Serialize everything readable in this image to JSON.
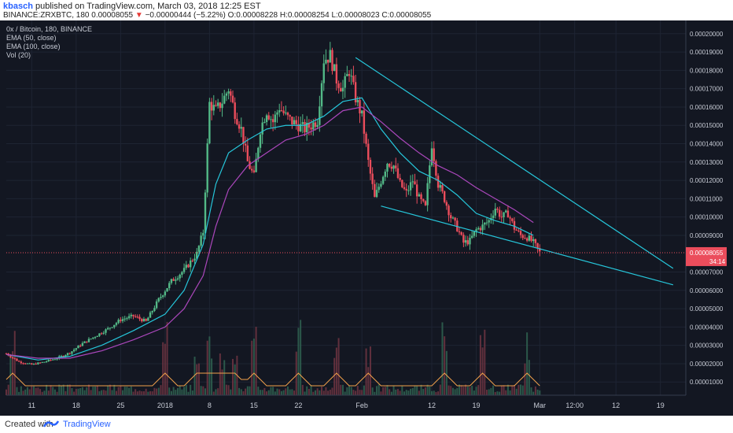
{
  "header": {
    "author": "kbasch",
    "published": "published on TradingView.com, March 03, 2018 12:25 EST",
    "symbol_line": "BINANCE:ZRXBTC, 180",
    "last": "0.00008055",
    "change": "−0.00000444 (−5.22%)",
    "ohlc": "O:0.00008228 H:0.00008254 L:0.00008023 C:0.00008055"
  },
  "legend": [
    "0x / Bitcoin, 180, BINANCE",
    "EMA (50, close)",
    "EMA (100, close)",
    "Vol (20)"
  ],
  "price_tag": {
    "value": "0.00008055",
    "countdown": "34:14"
  },
  "footer": {
    "created": "Created with",
    "brand": "TradingView"
  },
  "colors": {
    "background": "#131722",
    "up": "#53b987",
    "down": "#eb4d5c",
    "ema50": "#26c6da",
    "ema100": "#ab47bc",
    "channel": "#26c6da",
    "volume_ma": "#f0a04b",
    "price_line": "#eb4d5c"
  },
  "chart_data": {
    "type": "line",
    "title": "0x / Bitcoin, 180, BINANCE",
    "y_ticks": [
      "0.00020000",
      "0.00019000",
      "0.00018000",
      "0.00017000",
      "0.00016000",
      "0.00015000",
      "0.00014000",
      "0.00013000",
      "0.00012000",
      "0.00011000",
      "0.00010000",
      "0.00009000",
      "0.00007000",
      "0.00006000",
      "0.00005000",
      "0.00004000",
      "0.00003000",
      "0.00002000",
      "0.00001000"
    ],
    "x_ticks": [
      "11",
      "18",
      "25",
      "2018",
      "8",
      "15",
      "22",
      "Feb",
      "12",
      "19",
      "Mar",
      "12:00",
      "12",
      "19"
    ],
    "x_tick_days": [
      -21,
      -14,
      -7,
      0,
      7,
      14,
      21,
      31,
      42,
      49,
      59,
      64.5,
      71,
      78
    ],
    "x_range_days": [
      -25,
      82
    ],
    "ylim": [
      0,
      0.0002
    ],
    "y_axis_price_scale_top": 0.0002055,
    "y_axis_price_scale_bottom": 2.8e-06,
    "series": [
      {
        "name": "0x / Bitcoin",
        "days": [
          -25,
          -23,
          -21,
          -19,
          -17,
          -15,
          -13,
          -11,
          -9,
          -7,
          -5,
          -3,
          -1,
          1,
          3,
          5,
          6,
          7,
          8,
          9,
          10,
          11,
          12,
          13,
          14,
          15,
          16,
          17,
          18,
          19,
          20,
          21,
          22,
          23,
          24,
          25,
          26,
          27,
          28,
          29,
          30,
          31,
          32,
          33,
          34,
          35,
          36,
          37,
          38,
          39,
          40,
          41,
          42,
          43,
          44,
          45,
          46,
          47,
          48,
          49,
          50,
          51,
          52,
          53,
          54,
          55,
          56,
          57,
          58,
          59
        ],
        "values": [
          2.55e-05,
          2.1e-05,
          1.95e-05,
          2.1e-05,
          2.3e-05,
          2.6e-05,
          3.1e-05,
          3.5e-05,
          3.9e-05,
          4.4e-05,
          4.6e-05,
          4.3e-05,
          5.5e-05,
          6.5e-05,
          7.1e-05,
          8e-05,
          9.2e-05,
          0.000162,
          0.000158,
          0.000163,
          0.00017,
          0.000157,
          0.000148,
          0.00013,
          0.000122,
          0.000148,
          0.000158,
          0.000152,
          0.00016,
          0.000155,
          0.000152,
          0.00015,
          0.000148,
          0.00015,
          0.000153,
          0.000186,
          0.000188,
          0.000175,
          0.00017,
          0.00018,
          0.000165,
          0.000155,
          0.00013,
          0.00011,
          0.00012,
          0.00013,
          0.000128,
          0.000118,
          0.000113,
          0.00012,
          0.00011,
          0.000105,
          0.00014,
          0.000118,
          0.00011,
          0.0001,
          9.4e-05,
          8.6e-05,
          8.7e-05,
          9.3e-05,
          9.5e-05,
          9.8e-05,
          0.000105,
          0.0001,
          0.000102,
          9.4e-05,
          9e-05,
          8.9e-05,
          8.6e-05,
          8.06e-05
        ]
      },
      {
        "name": "EMA (50, close)",
        "days": [
          -25,
          -20,
          -15,
          -10,
          -5,
          0,
          3,
          6,
          8,
          10,
          13,
          16,
          19,
          22,
          25,
          28,
          31,
          34,
          37,
          40,
          43,
          46,
          49,
          52,
          55,
          58
        ],
        "values": [
          2.5e-05,
          2.2e-05,
          2.4e-05,
          3e-05,
          3.8e-05,
          4.7e-05,
          6e-05,
          8.5e-05,
          0.000118,
          0.000135,
          0.000142,
          0.000148,
          0.00015,
          0.00015,
          0.000155,
          0.000163,
          0.000165,
          0.000148,
          0.000135,
          0.000125,
          0.00012,
          0.000112,
          0.000102,
          9.8e-05,
          9.5e-05,
          9e-05
        ]
      },
      {
        "name": "EMA (100, close)",
        "days": [
          -25,
          -20,
          -15,
          -10,
          -5,
          0,
          3,
          6,
          8,
          10,
          13,
          16,
          19,
          22,
          25,
          28,
          31,
          34,
          37,
          40,
          43,
          46,
          49,
          52,
          55,
          58
        ],
        "values": [
          2.5e-05,
          2.3e-05,
          2.3e-05,
          2.7e-05,
          3.3e-05,
          4e-05,
          5e-05,
          6.8e-05,
          9.5e-05,
          0.000115,
          0.000128,
          0.000135,
          0.000142,
          0.000145,
          0.00015,
          0.000158,
          0.00016,
          0.000152,
          0.000143,
          0.000135,
          0.000128,
          0.000123,
          0.000116,
          0.00011,
          0.000104,
          9.7e-05
        ]
      }
    ],
    "trendlines": [
      {
        "days": [
          30,
          80
        ],
        "values": [
          0.000187,
          7.2e-05
        ]
      },
      {
        "days": [
          34,
          80
        ],
        "values": [
          0.000106,
          6.3e-05
        ]
      }
    ],
    "volume_spikes_days": [
      -24,
      0,
      5,
      7,
      9,
      11,
      14,
      21,
      27,
      32,
      44,
      50,
      57
    ]
  }
}
